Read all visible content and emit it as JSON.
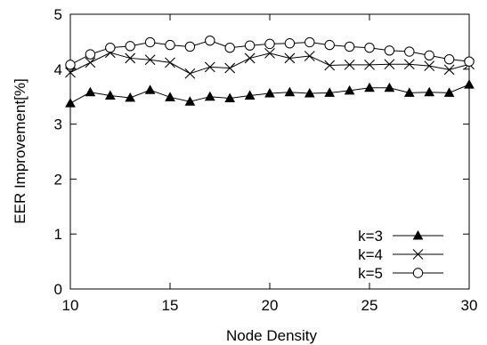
{
  "chart_data": {
    "type": "line",
    "xlabel": "Node Density",
    "ylabel": "EER Improvement[%]",
    "xlim": [
      10,
      30
    ],
    "ylim": [
      0,
      5
    ],
    "xticks": [
      "10",
      "15",
      "20",
      "25",
      "30"
    ],
    "yticks": [
      "0",
      "1",
      "2",
      "3",
      "4",
      "5"
    ],
    "grid": false,
    "legend_position": "bottom-right",
    "x": [
      10,
      11,
      12,
      13,
      14,
      15,
      16,
      17,
      18,
      19,
      20,
      21,
      22,
      23,
      24,
      25,
      26,
      27,
      28,
      29,
      30
    ],
    "series": [
      {
        "name": "k=3",
        "marker": "filled-triangle",
        "values": [
          3.38,
          3.58,
          3.52,
          3.48,
          3.62,
          3.49,
          3.41,
          3.5,
          3.47,
          3.52,
          3.56,
          3.58,
          3.56,
          3.57,
          3.61,
          3.66,
          3.66,
          3.57,
          3.58,
          3.57,
          3.72
        ]
      },
      {
        "name": "k=4",
        "marker": "x",
        "values": [
          3.94,
          4.12,
          4.3,
          4.2,
          4.17,
          4.12,
          3.92,
          4.04,
          4.02,
          4.2,
          4.29,
          4.2,
          4.24,
          4.07,
          4.08,
          4.08,
          4.09,
          4.09,
          4.06,
          3.99,
          4.09
        ]
      },
      {
        "name": "k=5",
        "marker": "open-circle",
        "values": [
          4.08,
          4.27,
          4.39,
          4.42,
          4.49,
          4.44,
          4.41,
          4.52,
          4.39,
          4.43,
          4.46,
          4.47,
          4.49,
          4.44,
          4.41,
          4.39,
          4.34,
          4.32,
          4.25,
          4.18,
          4.14
        ]
      }
    ],
    "colors": {
      "line": "#000000",
      "background": "#ffffff"
    }
  }
}
